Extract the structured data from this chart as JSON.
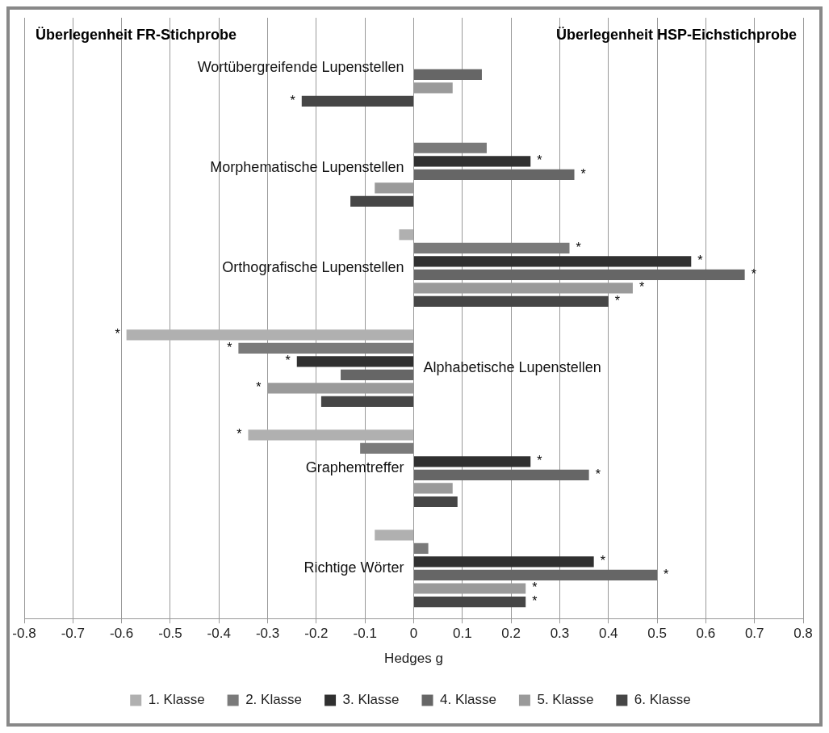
{
  "chart_data": {
    "type": "bar",
    "orientation": "horizontal",
    "categories": [
      "Wortübergreifende Lupenstellen",
      "Morphematische Lupenstellen",
      "Orthografische Lupenstellen",
      "Alphabetische Lupenstellen",
      "Graphemtreffer",
      "Richtige Wörter"
    ],
    "series": [
      {
        "name": "1. Klasse",
        "color": "#b0b0b0",
        "values": [
          null,
          null,
          -0.03,
          -0.59,
          -0.34,
          -0.08
        ],
        "value_labels": [
          null,
          null,
          null,
          "*",
          "*",
          null
        ]
      },
      {
        "name": "2. Klasse",
        "color": "#7a7a7a",
        "values": [
          null,
          0.15,
          0.32,
          -0.36,
          -0.11,
          0.03
        ],
        "value_labels": [
          null,
          null,
          "*",
          "*",
          null,
          null
        ]
      },
      {
        "name": "3. Klasse",
        "color": "#303030",
        "values": [
          null,
          0.24,
          0.57,
          -0.24,
          0.24,
          0.37
        ],
        "value_labels": [
          null,
          "*",
          "*",
          "*",
          "*",
          "*"
        ]
      },
      {
        "name": "4. Klasse",
        "color": "#666666",
        "values": [
          0.14,
          0.33,
          0.68,
          -0.15,
          0.36,
          0.5
        ],
        "value_labels": [
          null,
          "*",
          "*",
          null,
          "*",
          "*"
        ]
      },
      {
        "name": "5. Klasse",
        "color": "#9a9a9a",
        "values": [
          0.08,
          -0.08,
          0.45,
          -0.3,
          0.08,
          0.23
        ],
        "value_labels": [
          null,
          null,
          "*",
          "*",
          null,
          "*"
        ]
      },
      {
        "name": "6. Klasse",
        "color": "#464646",
        "values": [
          -0.23,
          -0.13,
          0.4,
          -0.19,
          0.09,
          0.23
        ],
        "value_labels": [
          "*",
          null,
          "*",
          null,
          null,
          "*"
        ]
      }
    ],
    "xlabel": "Hedges g",
    "xlim": [
      -0.8,
      0.8
    ],
    "xticks": [
      -0.8,
      -0.7,
      -0.6,
      -0.5,
      -0.4,
      -0.3,
      -0.2,
      -0.1,
      0,
      0.1,
      0.2,
      0.3,
      0.4,
      0.5,
      0.6,
      0.7,
      0.8
    ],
    "grid": "x",
    "legend": "bottom",
    "annotations": [
      "Überlegenheit FR-Stichprobe",
      "Überlegenheit HSP-Eichstichprobe"
    ]
  }
}
